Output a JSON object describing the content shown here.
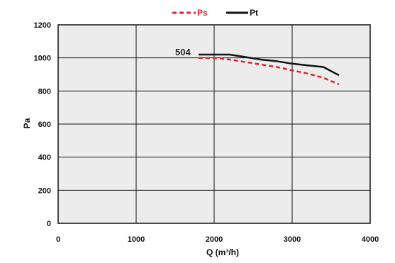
{
  "chart_data": {
    "type": "line",
    "xlabel": "Q (m³/h)",
    "ylabel": "Pa",
    "xlim": [
      0,
      4000
    ],
    "ylim": [
      0,
      1200
    ],
    "xticks": [
      0,
      1000,
      2000,
      3000,
      4000
    ],
    "yticks": [
      0,
      200,
      400,
      600,
      800,
      1000,
      1200
    ],
    "grid": true,
    "legend_position": "top-center",
    "annotation": "504",
    "series": [
      {
        "name": "Ps",
        "color": "#e0232a",
        "style": "dashed",
        "x": [
          1800,
          2000,
          2200,
          2400,
          2600,
          2800,
          3000,
          3200,
          3400,
          3600
        ],
        "y": [
          1000,
          1000,
          990,
          975,
          960,
          945,
          925,
          905,
          880,
          840
        ]
      },
      {
        "name": "Pt",
        "color": "#111111",
        "style": "solid",
        "x": [
          1800,
          2000,
          2200,
          2400,
          2600,
          2800,
          3000,
          3200,
          3400,
          3600
        ],
        "y": [
          1020,
          1020,
          1020,
          1005,
          990,
          980,
          965,
          955,
          945,
          895
        ]
      }
    ]
  }
}
